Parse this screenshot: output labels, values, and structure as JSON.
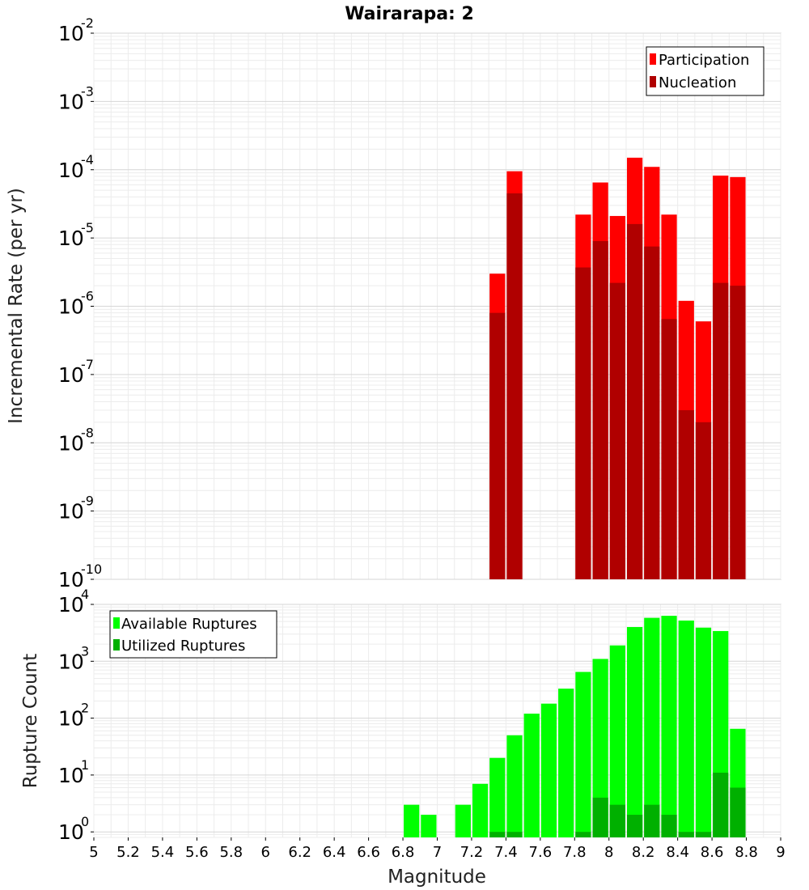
{
  "chart_data": [
    {
      "type": "bar",
      "title": "Wairarapa: 2",
      "ylabel": "Incremental Rate (per yr)",
      "xlabel": "",
      "xlim": [
        5,
        9
      ],
      "ylim": [
        1e-10,
        0.01
      ],
      "yscale": "log",
      "grid": true,
      "legend_position": "top-right",
      "bar_width": 0.1,
      "x": [
        7.3,
        7.4,
        7.8,
        7.9,
        8.0,
        8.1,
        8.2,
        8.3,
        8.4,
        8.5,
        8.6,
        8.7
      ],
      "y_tick_labels": [
        {
          "base": "10",
          "exp": "-10"
        },
        {
          "base": "10",
          "exp": "-9"
        },
        {
          "base": "10",
          "exp": "-8"
        },
        {
          "base": "10",
          "exp": "-7"
        },
        {
          "base": "10",
          "exp": "-6"
        },
        {
          "base": "10",
          "exp": "-5"
        },
        {
          "base": "10",
          "exp": "-4"
        },
        {
          "base": "10",
          "exp": "-3"
        },
        {
          "base": "10",
          "exp": "-2"
        }
      ],
      "series": [
        {
          "name": "Participation",
          "color": "#ff0000",
          "values": [
            3e-06,
            9.5e-05,
            2.2e-05,
            6.5e-05,
            2.1e-05,
            0.00015,
            0.00011,
            2.2e-05,
            1.2e-06,
            6e-07,
            8.2e-05,
            7.8e-05
          ]
        },
        {
          "name": "Nucleation",
          "color": "#b00000",
          "values": [
            8e-07,
            4.5e-05,
            3.7e-06,
            9e-06,
            2.2e-06,
            1.6e-05,
            7.5e-06,
            6.5e-07,
            3e-08,
            2e-08,
            2.2e-06,
            2e-06
          ]
        }
      ]
    },
    {
      "type": "bar",
      "title": "",
      "ylabel": "Rupture Count",
      "xlabel": "Magnitude",
      "xlim": [
        5,
        9
      ],
      "ylim": [
        0.8,
        10000
      ],
      "yscale": "log",
      "grid": true,
      "legend_position": "top-left",
      "bar_width": 0.1,
      "x": [
        6.8,
        6.9,
        7.1,
        7.2,
        7.3,
        7.4,
        7.5,
        7.6,
        7.7,
        7.8,
        7.9,
        8.0,
        8.1,
        8.2,
        8.3,
        8.4,
        8.5,
        8.6,
        8.7
      ],
      "x_tick_labels": [
        "5",
        "5.2",
        "5.4",
        "5.6",
        "5.8",
        "6",
        "6.2",
        "6.4",
        "6.6",
        "6.8",
        "7",
        "7.2",
        "7.4",
        "7.6",
        "7.8",
        "8",
        "8.2",
        "8.4",
        "8.6",
        "8.8",
        "9"
      ],
      "y_tick_labels": [
        {
          "base": "10",
          "exp": "0"
        },
        {
          "base": "10",
          "exp": "1"
        },
        {
          "base": "10",
          "exp": "2"
        },
        {
          "base": "10",
          "exp": "3"
        },
        {
          "base": "10",
          "exp": "4"
        }
      ],
      "series": [
        {
          "name": "Available Ruptures",
          "color": "#00ff00",
          "values": [
            3,
            2,
            3,
            7,
            20,
            50,
            120,
            180,
            330,
            650,
            1100,
            1900,
            4000,
            5800,
            6300,
            5200,
            3900,
            3400,
            65
          ]
        },
        {
          "name": "Utilized Ruptures",
          "color": "#00b000",
          "values": [
            0,
            0,
            0,
            0,
            1,
            1,
            0,
            0,
            0,
            1,
            4,
            3,
            2,
            3,
            2,
            1,
            1,
            11,
            6
          ]
        }
      ]
    }
  ]
}
